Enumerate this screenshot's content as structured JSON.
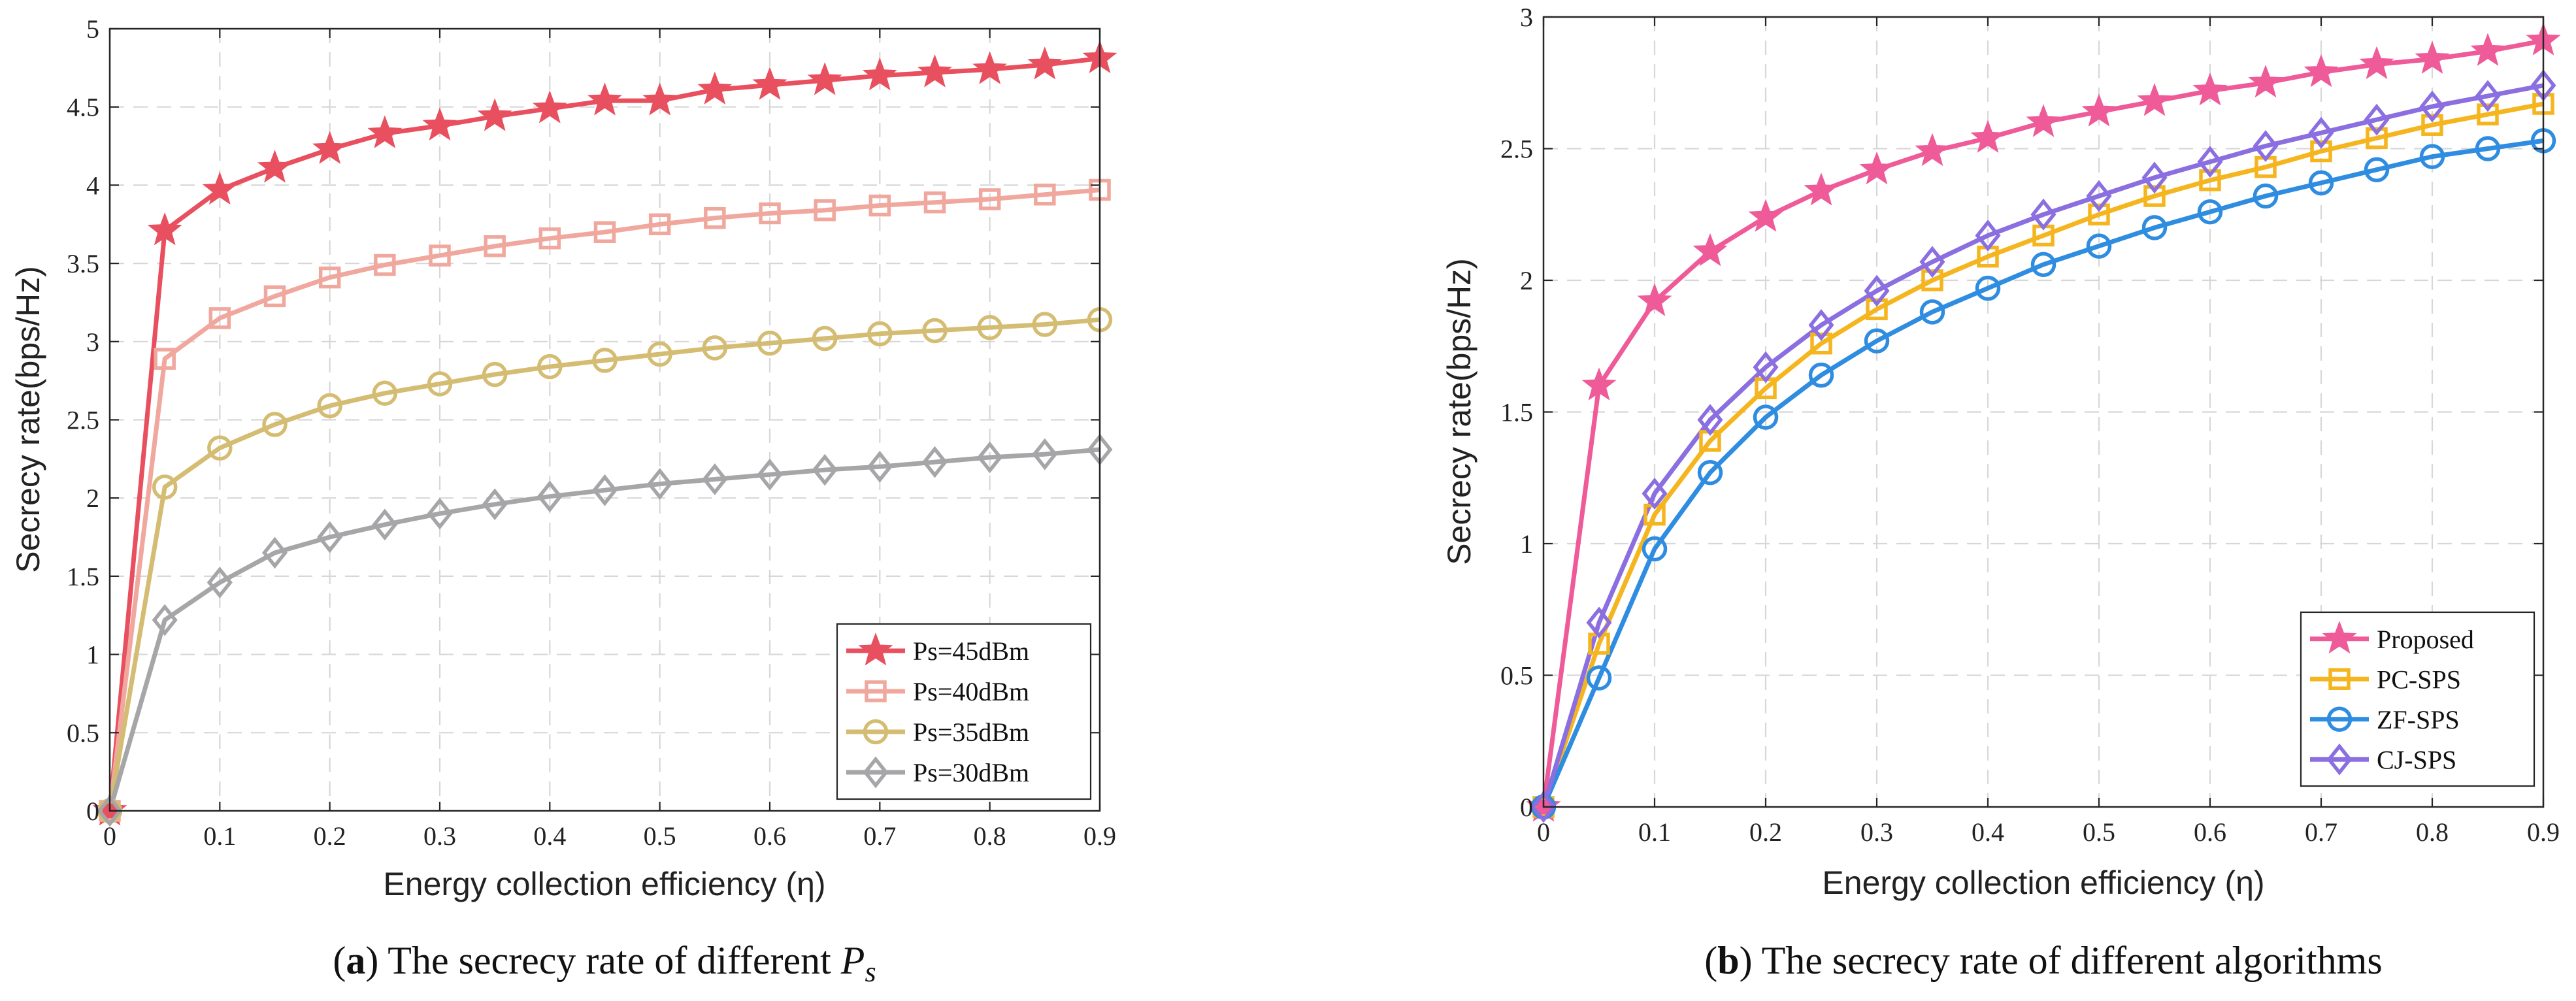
{
  "figure": {
    "captions": [
      {
        "label": "a",
        "text": "The secrecy rate of different ",
        "math": "P",
        "math_sub": "s"
      },
      {
        "label": "b",
        "text": "The secrecy rate of different algorithms",
        "math": "",
        "math_sub": ""
      }
    ]
  },
  "chart_data": [
    {
      "type": "line",
      "title": "",
      "xlabel": "Energy collection efficiency (η)",
      "ylabel": "Secrecy rate(bps/Hz)",
      "xlim": [
        0,
        0.9
      ],
      "ylim": [
        0,
        5
      ],
      "xticks": [
        0,
        0.1,
        0.2,
        0.3,
        0.4,
        0.5,
        0.6,
        0.7,
        0.8,
        0.9
      ],
      "xtick_labels": [
        "0",
        "0.1",
        "0.2",
        "0.3",
        "0.4",
        "0.5",
        "0.6",
        "0.7",
        "0.8",
        "0.9"
      ],
      "yticks": [
        0,
        0.5,
        1,
        1.5,
        2,
        2.5,
        3,
        3.5,
        4,
        4.5,
        5
      ],
      "ytick_labels": [
        "0",
        "0.5",
        "1",
        "1.5",
        "2",
        "2.5",
        "3",
        "3.5",
        "4",
        "4.5",
        "5"
      ],
      "grid": true,
      "legend_position": "bottom-right",
      "x": [
        0,
        0.05,
        0.1,
        0.15,
        0.2,
        0.25,
        0.3,
        0.35,
        0.4,
        0.45,
        0.5,
        0.55,
        0.6,
        0.65,
        0.7,
        0.75,
        0.8,
        0.85,
        0.9
      ],
      "series": [
        {
          "name": "Ps=45dBm",
          "color": "#e8505f",
          "marker": "star",
          "values": [
            0,
            3.71,
            3.97,
            4.11,
            4.23,
            4.33,
            4.38,
            4.44,
            4.49,
            4.54,
            4.54,
            4.61,
            4.64,
            4.67,
            4.7,
            4.72,
            4.74,
            4.77,
            4.81
          ]
        },
        {
          "name": "Ps=40dBm",
          "color": "#f0a89e",
          "marker": "square",
          "values": [
            0,
            2.89,
            3.15,
            3.29,
            3.41,
            3.49,
            3.55,
            3.61,
            3.66,
            3.7,
            3.75,
            3.79,
            3.82,
            3.84,
            3.87,
            3.89,
            3.91,
            3.94,
            3.97
          ]
        },
        {
          "name": "Ps=35dBm",
          "color": "#d4bd72",
          "marker": "circle",
          "values": [
            0,
            2.07,
            2.32,
            2.47,
            2.59,
            2.67,
            2.73,
            2.79,
            2.84,
            2.88,
            2.92,
            2.96,
            2.99,
            3.02,
            3.05,
            3.07,
            3.09,
            3.11,
            3.14
          ]
        },
        {
          "name": "Ps=30dBm",
          "color": "#a6a6a8",
          "marker": "diamond",
          "values": [
            0,
            1.22,
            1.46,
            1.65,
            1.75,
            1.83,
            1.9,
            1.96,
            2.01,
            2.05,
            2.09,
            2.12,
            2.15,
            2.18,
            2.2,
            2.23,
            2.26,
            2.28,
            2.31
          ]
        }
      ]
    },
    {
      "type": "line",
      "title": "",
      "xlabel": "Energy collection efficiency (η)",
      "ylabel": "Secrecy rate(bps/Hz)",
      "xlim": [
        0,
        0.9
      ],
      "ylim": [
        0,
        3
      ],
      "xticks": [
        0,
        0.1,
        0.2,
        0.3,
        0.4,
        0.5,
        0.6,
        0.7,
        0.8,
        0.9
      ],
      "xtick_labels": [
        "0",
        "0.1",
        "0.2",
        "0.3",
        "0.4",
        "0.5",
        "0.6",
        "0.7",
        "0.8",
        "0.9"
      ],
      "yticks": [
        0,
        0.5,
        1,
        1.5,
        2,
        2.5,
        3
      ],
      "ytick_labels": [
        "0",
        "0.5",
        "1",
        "1.5",
        "2",
        "2.5",
        "3"
      ],
      "grid": true,
      "legend_position": "bottom-right",
      "x": [
        0,
        0.05,
        0.1,
        0.15,
        0.2,
        0.25,
        0.3,
        0.35,
        0.4,
        0.45,
        0.5,
        0.55,
        0.6,
        0.65,
        0.7,
        0.75,
        0.8,
        0.85,
        0.9
      ],
      "series": [
        {
          "name": "Proposed",
          "color": "#ef5a99",
          "marker": "star",
          "values": [
            0,
            1.6,
            1.92,
            2.11,
            2.24,
            2.34,
            2.42,
            2.49,
            2.54,
            2.6,
            2.64,
            2.68,
            2.72,
            2.75,
            2.79,
            2.82,
            2.84,
            2.87,
            2.91
          ]
        },
        {
          "name": "PC-SPS",
          "color": "#f5b51e",
          "marker": "square",
          "values": [
            0,
            0.62,
            1.11,
            1.39,
            1.59,
            1.76,
            1.89,
            2.0,
            2.09,
            2.17,
            2.25,
            2.32,
            2.38,
            2.43,
            2.49,
            2.54,
            2.59,
            2.63,
            2.67
          ]
        },
        {
          "name": "ZF-SPS",
          "color": "#2e8de0",
          "marker": "circle",
          "values": [
            0,
            0.49,
            0.98,
            1.27,
            1.48,
            1.64,
            1.77,
            1.88,
            1.97,
            2.06,
            2.13,
            2.2,
            2.26,
            2.32,
            2.37,
            2.42,
            2.47,
            2.5,
            2.53
          ]
        },
        {
          "name": "CJ-SPS",
          "color": "#8b6ee0",
          "marker": "diamond",
          "values": [
            0,
            0.7,
            1.19,
            1.47,
            1.67,
            1.83,
            1.96,
            2.07,
            2.17,
            2.25,
            2.32,
            2.39,
            2.45,
            2.51,
            2.56,
            2.61,
            2.66,
            2.7,
            2.74
          ]
        }
      ]
    }
  ]
}
